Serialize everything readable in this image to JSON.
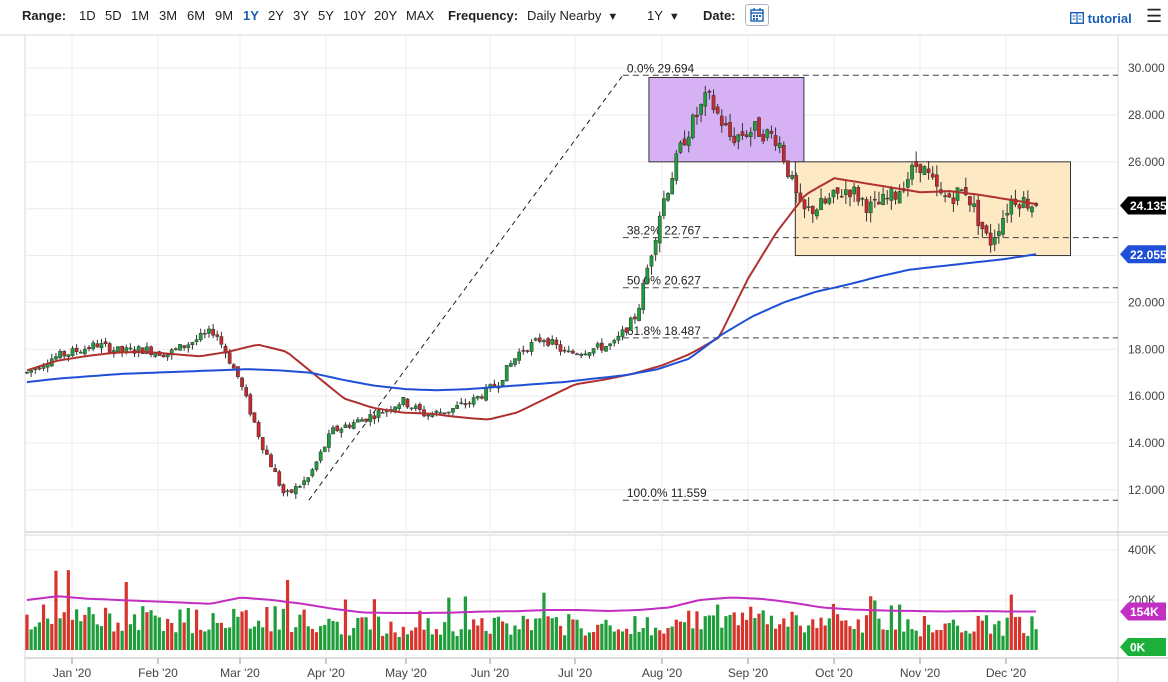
{
  "toolbar": {
    "range_label": "Range:",
    "ranges": [
      "1D",
      "5D",
      "1M",
      "3M",
      "6M",
      "9M",
      "1Y",
      "2Y",
      "3Y",
      "5Y",
      "10Y",
      "20Y",
      "MAX"
    ],
    "active_range": "1Y",
    "frequency_label": "Frequency:",
    "frequency_value": "Daily Nearby",
    "period_value": "1Y",
    "date_label": "Date:",
    "tutorial_label": "tutorial",
    "icons": [
      "calendar-icon",
      "chevron-down-icon",
      "tutorial-icon",
      "menu-icon"
    ]
  },
  "chart_data": [
    {
      "type": "candlestick",
      "y_ticks": [
        "30.000",
        "28.000",
        "26.000",
        "24.000",
        "22.000",
        "20.000",
        "18.000",
        "16.000",
        "14.000",
        "12.000"
      ],
      "x_ticks": [
        "Jan '20",
        "Feb '20",
        "Mar '20",
        "Apr '20",
        "May '20",
        "Jun '20",
        "Jul '20",
        "Aug '20",
        "Sep '20",
        "Oct '20",
        "Nov '20",
        "Dec '20"
      ],
      "ylim": [
        10.5,
        31.2
      ],
      "price_badges": [
        {
          "text": "24.135",
          "value": 24.135,
          "color": "#000000"
        },
        {
          "text": "22.055",
          "value": 22.055,
          "color": "#1f4fd6"
        }
      ],
      "fib_levels": [
        {
          "text": "0.0% 29.694",
          "value": 29.694
        },
        {
          "text": "38.2% 22.767",
          "value": 22.767
        },
        {
          "text": "50.0% 20.627",
          "value": 20.627
        },
        {
          "text": "61.8% 18.487",
          "value": 18.487
        },
        {
          "text": "100.0% 11.559",
          "value": 11.559
        }
      ],
      "fib_anchor": {
        "low": {
          "x": "Mar '20 +0.8",
          "value": 11.56
        },
        "high": {
          "x": "Jul '20 +0.55",
          "value": 29.694
        }
      },
      "boxes": [
        {
          "color": "#d6b2f5",
          "x_from": "Aug '20 -0.15",
          "x_to": "Sep '20 +0.65",
          "y_from": 26.0,
          "y_to": 29.6
        },
        {
          "color": "#fde9c4",
          "x_from": "Sep '20 +0.55",
          "x_to": "Dec '20 +0.75",
          "y_from": 22.0,
          "y_to": 26.0
        }
      ],
      "ma_series": [
        {
          "color": "#b03030",
          "values": [
            17.1,
            17.5,
            17.7,
            17.85,
            17.9,
            17.8,
            17.7,
            17.9,
            18.2,
            17.9,
            16.9,
            15.9,
            15.5,
            15.3,
            15.25,
            15.1,
            15.0,
            15.3,
            15.9,
            16.5,
            16.7,
            16.95,
            17.3,
            17.8,
            18.5,
            21.0,
            23.0,
            24.6,
            25.3,
            25.1,
            24.9,
            24.7,
            24.75,
            24.6,
            24.4,
            24.2
          ]
        },
        {
          "color": "#1f4fd6",
          "values": [
            16.6,
            16.75,
            16.85,
            16.95,
            17.0,
            17.05,
            17.1,
            17.15,
            17.1,
            17.0,
            16.7,
            16.45,
            16.3,
            16.25,
            16.3,
            16.4,
            16.5,
            16.6,
            16.75,
            16.9,
            17.15,
            17.6,
            18.6,
            19.4,
            20.0,
            20.45,
            20.75,
            21.1,
            21.4,
            21.55,
            21.7,
            21.85,
            22.055
          ]
        }
      ],
      "ohlc_trend": [
        17.0,
        17.6,
        17.9,
        18.2,
        17.9,
        18.0,
        17.8,
        18.3,
        18.8,
        16.8,
        14.0,
        11.7,
        12.5,
        14.5,
        14.9,
        15.3,
        15.8,
        15.2,
        15.4,
        15.8,
        16.5,
        17.9,
        18.5,
        17.8,
        18.0,
        18.2,
        19.5,
        24.0,
        27.0,
        28.8,
        27.0,
        27.4,
        27.0,
        23.8,
        24.2,
        24.9,
        24.0,
        24.6,
        26.0,
        24.4,
        24.8,
        22.5,
        24.5,
        24.135
      ]
    },
    {
      "type": "bar",
      "y_ticks": [
        "400K",
        "200K"
      ],
      "ylim": [
        0,
        420000
      ],
      "price_badges": [
        {
          "text": "154K",
          "value": 154000,
          "color": "#c12ec1"
        },
        {
          "text": "0K",
          "value": 0,
          "color": "#1ab03a"
        }
      ],
      "ma_values": [
        200000,
        215000,
        205000,
        200000,
        195000,
        190000,
        185000,
        210000,
        200000,
        185000,
        165000,
        150000,
        148000,
        148000,
        150000,
        154000,
        155000,
        160000,
        160000,
        156000,
        160000,
        170000,
        200000,
        210000,
        205000,
        190000,
        170000,
        162000,
        158000,
        156000,
        154000,
        156000,
        154000,
        154000
      ]
    }
  ]
}
